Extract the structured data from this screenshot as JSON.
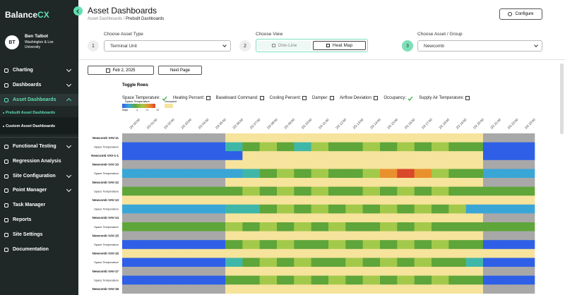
{
  "sidebar": {
    "brand": "Balance",
    "brand_accent": "CX",
    "avatar": "BT",
    "user_name": "Ben Talbot",
    "user_org": "Washington & Lee University",
    "nav": [
      {
        "label": "Charting",
        "expandable": true
      },
      {
        "label": "Dashboards",
        "expandable": true
      },
      {
        "label": "Asset Dashboards",
        "expandable": true,
        "active": true
      },
      {
        "label": "Prebuilt Asset Dashboards",
        "sub": true,
        "active": true
      },
      {
        "label": "Custom Asset Dashboards",
        "sub": true
      },
      {
        "label": "Functional Testing",
        "expandable": true
      },
      {
        "label": "Regression Analysis"
      },
      {
        "label": "Site Configuration",
        "expandable": true
      },
      {
        "label": "Point Manager",
        "expandable": true
      },
      {
        "label": "Task Manager"
      },
      {
        "label": "Reports"
      },
      {
        "label": "Site Settings"
      },
      {
        "label": "Documentation"
      }
    ]
  },
  "header": {
    "title": "Asset Dashboards",
    "breadcrumb": "Asset Dashboards /",
    "breadcrumb_current": "Prebuilt Dashboards",
    "configure": "Configure"
  },
  "steps": [
    {
      "number": "1",
      "label": "Choose Asset Type",
      "value": "Terminal Unit"
    },
    {
      "number": "2",
      "label": "Choose View",
      "options": [
        "One-Line",
        "Heat Map"
      ],
      "selected": 1
    },
    {
      "number": "3",
      "label": "Choose Asset / Group",
      "value": "Newcomb"
    }
  ],
  "controls": {
    "date": "Feb 2, 2025",
    "next": "Next Page"
  },
  "toggles": {
    "title": "Toggle Rows",
    "items": [
      {
        "label": "Space Temperature:",
        "checked": true
      },
      {
        "label": "Heating Percent:",
        "checked": false
      },
      {
        "label": "Baseboard Command:",
        "checked": false
      },
      {
        "label": "Cooling Percent:",
        "checked": false
      },
      {
        "label": "Damper:",
        "checked": false
      },
      {
        "label": "Airflow Deviation:",
        "checked": false
      },
      {
        "label": "Occupancy:",
        "checked": true
      },
      {
        "label": "Supply Air Temperature:",
        "checked": false
      }
    ]
  },
  "legend": {
    "title": "Space Temperature",
    "scale_labels": [
      "Setpt",
      "-1",
      "+1",
      "+2"
    ],
    "occupied": "Occupied"
  },
  "heatmap": {
    "palette": {
      "g": "#a8a8a8",
      "y": "#f6e39c",
      "b": "#2e5fe6",
      "c": "#3aa6d6",
      "t": "#3fb7a8",
      "G": "#5ea53a",
      "l": "#a3c94a",
      "o": "#e8902c",
      "r": "#d9482a"
    },
    "columns": [
      "2/2 00:00",
      "2/2 01:00",
      "2/2 02:00",
      "2/2 03:00",
      "2/2 04:00",
      "2/2 05:00",
      "2/2 06:00",
      "2/2 07:00",
      "2/2 08:00",
      "2/2 09:00",
      "2/2 10:00",
      "2/2 11:00",
      "2/2 12:00",
      "2/2 13:00",
      "2/2 14:00",
      "2/2 15:00",
      "2/2 16:00",
      "2/2 17:00",
      "2/2 18:00",
      "2/2 19:00",
      "2/2 20:00",
      "2/2 21:00",
      "2/2 22:00",
      "2/2 23:00"
    ],
    "rows": [
      {
        "label": "Newcomb VAV-11",
        "bold": true,
        "cells": "ggggggyyyyyyyyyyyyyyyggg"
      },
      {
        "label": "Space Temperature",
        "cells": "bbbbbbtGlGtlGGlGlGlGGbbb"
      },
      {
        "label": "Newcomb VAV-1-1",
        "bold": true,
        "cells": "bbbbbbbyyyyyyyyyyyyyybbb"
      },
      {
        "label": "Newcomb VAV-10",
        "bold": true,
        "cells": "ggggggyyyyyyyyyyyyyyyggg"
      },
      {
        "label": "Space Temperature",
        "cells": "ccccccctGlGlGGlorolGGccc"
      },
      {
        "label": "Newcomb VAV-12",
        "bold": true,
        "cells": "ggggggyyyyyyyyyyyyyyyggg"
      },
      {
        "label": "Space Temperature",
        "cells": "GGGGGGGlGlGlGGlGlGlGGGGG"
      },
      {
        "label": "Newcomb VAV-13",
        "bold": true,
        "cells": "yyyyyyyyyyyyyyyyyyyyyyyy"
      },
      {
        "label": "Space Temperature",
        "cells": "ccccccttGlGlGlGlGlGlcccc"
      },
      {
        "label": "Newcomb VAV-14",
        "bold": true,
        "cells": "ggggggyyyyyyyyyyyyyyyggg"
      },
      {
        "label": "Space Temperature",
        "cells": "GGGGGGlGlGlGlGGlGlGGGGGG"
      },
      {
        "label": "Newcomb VAV-15",
        "bold": true,
        "cells": "ggggggyyyyyyyyyyyyyyyggg"
      },
      {
        "label": "Space Temperature",
        "cells": "bbbbbbGlGlGGlGlGlGlGGbbb"
      },
      {
        "label": "Newcomb VAV-16",
        "bold": true,
        "cells": "yyyyyyyyyyyyyyyyyyyyyyyy"
      },
      {
        "label": "Space Temperature",
        "cells": "bbbbbbtGlGlGGlGlGlGGtbbb"
      },
      {
        "label": "Newcomb VAV-17",
        "bold": true,
        "cells": "ggggggyyyyyyyyyyyyyyyggg"
      },
      {
        "label": "Space Temperature",
        "cells": "bbbbbbGGlGlGlGlGlGlGGbbb"
      },
      {
        "label": "Newcomb VAV-18",
        "bold": true,
        "cells": "ggggggyyyyyyyyyyyyyyyggg"
      }
    ]
  }
}
